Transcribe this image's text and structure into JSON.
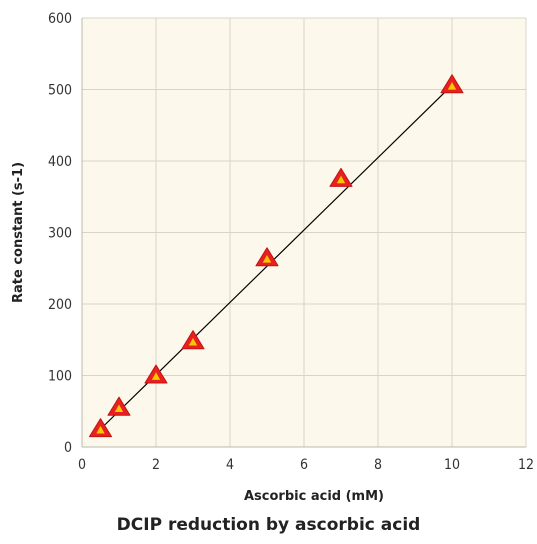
{
  "chart_data": {
    "type": "scatter",
    "title": "DCIP reduction by ascorbic acid",
    "xlabel": "Ascorbic acid (mM)",
    "ylabel": "Rate constant (s-1)",
    "xlim": [
      0,
      12
    ],
    "ylim": [
      0,
      600
    ],
    "x_ticks": [
      "0",
      "2",
      "4",
      "6",
      "8",
      "10",
      "12"
    ],
    "y_ticks": [
      "0",
      "100",
      "200",
      "300",
      "400",
      "500",
      "600"
    ],
    "grid": true,
    "marker": "triangle",
    "colors": {
      "plot_background": "#fdf8ec",
      "grid": "#d9d4c8",
      "marker_fill": "#e8201f",
      "marker_inner": "#f5c800",
      "fit_line": "#000000"
    },
    "series": [
      {
        "x": [
          0.5,
          1,
          2,
          3,
          5,
          7,
          10
        ],
        "y": [
          25,
          55,
          100,
          148,
          264,
          375,
          506
        ]
      }
    ],
    "fit_line": {
      "x": [
        0.5,
        10
      ],
      "y": [
        25,
        506
      ]
    }
  }
}
